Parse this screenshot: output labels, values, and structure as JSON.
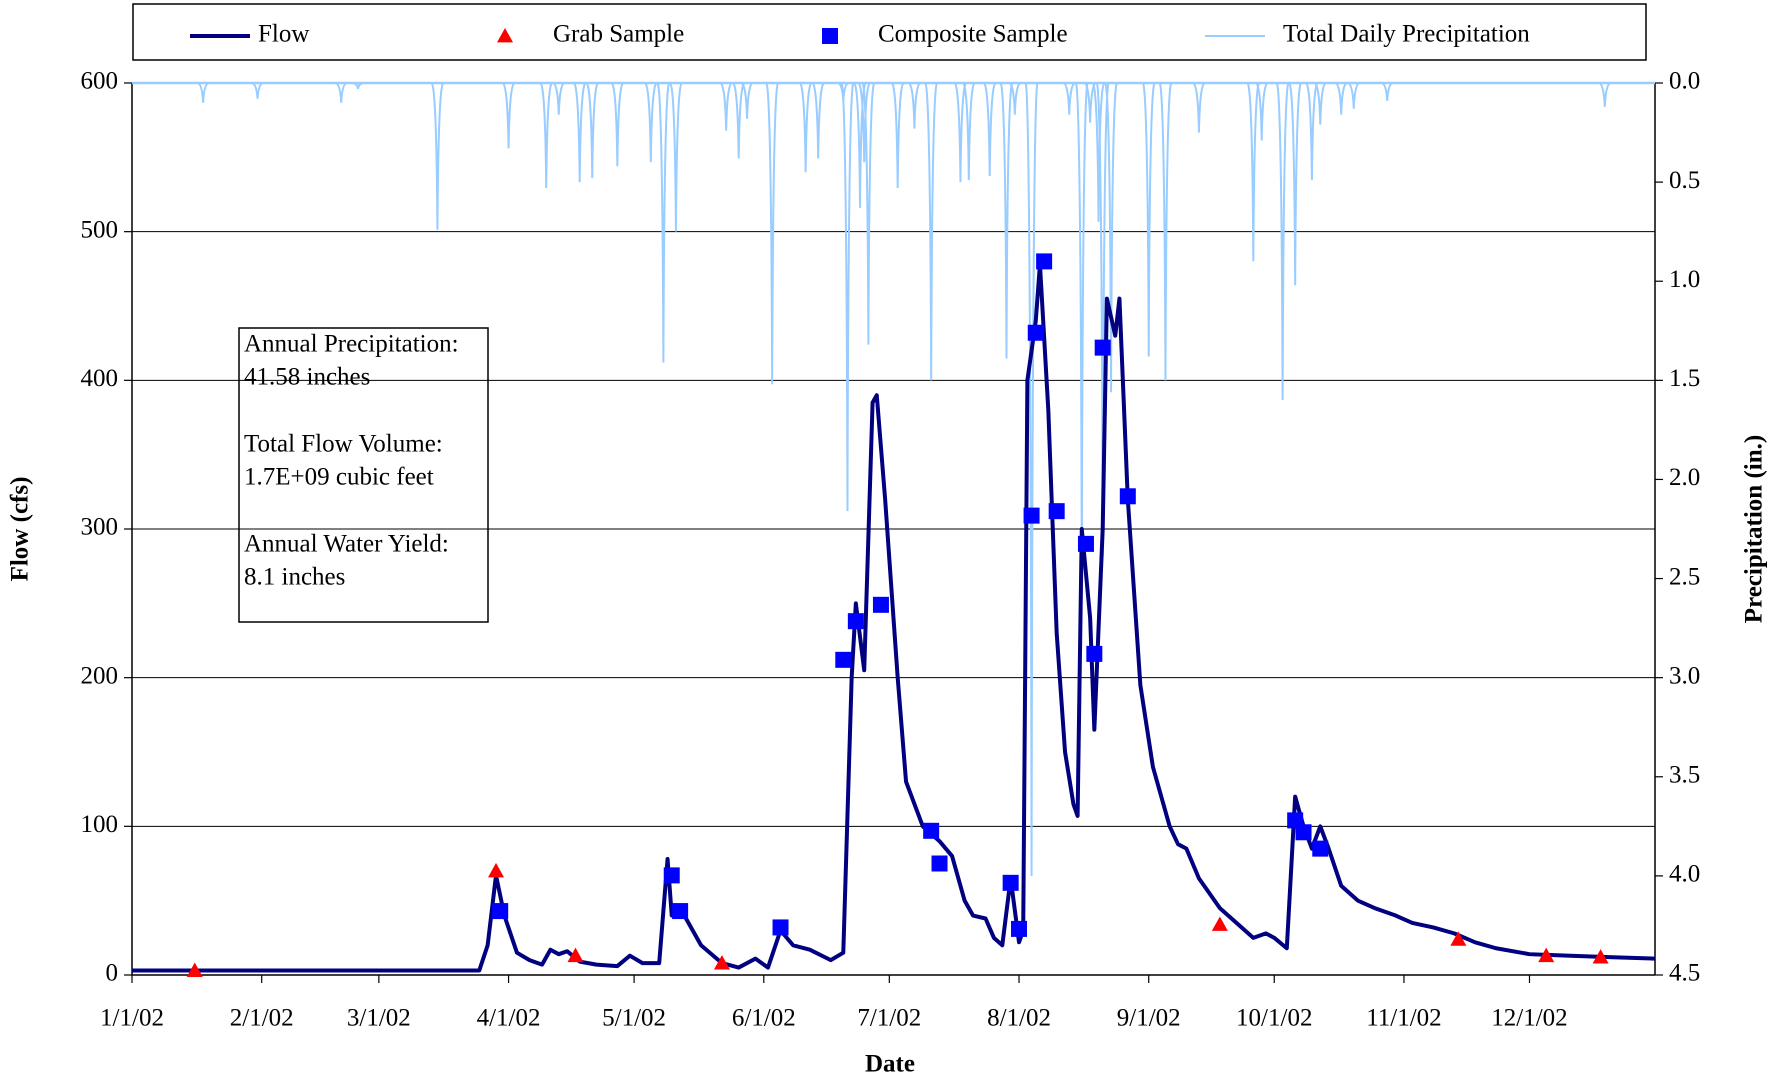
{
  "chart_data": {
    "type": "line",
    "xlabel": "Date",
    "ylabel": "Flow (cfs)",
    "y2label": "Precipitation (in.)",
    "xlim": [
      "1/1/02",
      "12/31/02"
    ],
    "xticks": [
      "1/1/02",
      "2/1/02",
      "3/1/02",
      "4/1/02",
      "5/1/02",
      "6/1/02",
      "7/1/02",
      "8/1/02",
      "9/1/02",
      "10/1/02",
      "11/1/02",
      "12/1/02"
    ],
    "ylim": [
      0,
      600
    ],
    "yticks": [
      0,
      100,
      200,
      300,
      400,
      500,
      600
    ],
    "y2lim": [
      4.5,
      0
    ],
    "y2ticks": [
      {
        "value": 0,
        "label": "0.0"
      },
      0.5,
      {
        "value": 1,
        "label": "1.0"
      },
      1.5,
      {
        "value": 2,
        "label": "2.0"
      },
      2.5,
      {
        "value": 3,
        "label": "3.0"
      },
      3.5,
      {
        "value": 4,
        "label": "4.0"
      },
      4.5
    ],
    "grid": true,
    "annotation": [
      "Annual Precipitation:",
      "41.58 inches",
      "Total Flow Volume:",
      "1.7E+09 cubic feet",
      "Annual Water Yield:",
      "8.1 inches"
    ],
    "series": [
      {
        "name": "Flow",
        "type": "line",
        "color": "#000080",
        "x": [
          "1/1/02",
          "3/25/02",
          "3/27/02",
          "3/29/02",
          "3/31/02",
          "4/3/02",
          "4/6/02",
          "4/9/02",
          "4/11/02",
          "4/13/02",
          "4/15/02",
          "4/18/02",
          "4/22/02",
          "4/27/02",
          "4/30/02",
          "5/3/02",
          "5/7/02",
          "5/9/02",
          "5/10/02",
          "5/13/02",
          "5/17/02",
          "5/22/02",
          "5/26/02",
          "5/30/02",
          "6/2/02",
          "6/5/02",
          "6/8/02",
          "6/12/02",
          "6/17/02",
          "6/20/02",
          "6/22/02",
          "6/23/02",
          "6/25/02",
          "6/27/02",
          "6/28/02",
          "6/30/02",
          "7/3/02",
          "7/5/02",
          "7/9/02",
          "7/13/02",
          "7/16/02",
          "7/19/02",
          "7/21/02",
          "7/24/02",
          "7/26/02",
          "7/28/02",
          "7/30/02",
          "8/1/02",
          "8/2/02",
          "8/3/02",
          "8/5/02",
          "8/6/02",
          "8/8/02",
          "8/10/02",
          "8/12/02",
          "8/14/02",
          "8/15/02",
          "8/16/02",
          "8/18/02",
          "8/19/02",
          "8/21/02",
          "8/22/02",
          "8/24/02",
          "8/25/02",
          "8/27/02",
          "8/30/02",
          "9/2/02",
          "9/6/02",
          "9/8/02",
          "9/10/02",
          "9/13/02",
          "9/18/02",
          "9/22/02",
          "9/26/02",
          "9/29/02",
          "10/1/02",
          "10/4/02",
          "10/6/02",
          "10/8/02",
          "10/10/02",
          "10/12/02",
          "10/14/02",
          "10/17/02",
          "10/21/02",
          "10/25/02",
          "10/30/02",
          "11/3/02",
          "11/8/02",
          "11/13/02",
          "11/18/02",
          "11/23/02",
          "12/1/02",
          "12/10/02",
          "12/20/02",
          "12/31/02"
        ],
        "values": [
          3,
          3,
          20,
          67,
          40,
          15,
          10,
          7,
          17,
          14,
          16,
          9,
          7,
          6,
          13,
          8,
          8,
          78,
          40,
          40,
          20,
          8,
          5,
          11,
          5,
          30,
          20,
          17,
          10,
          15,
          200,
          250,
          205,
          385,
          390,
          320,
          200,
          130,
          100,
          90,
          80,
          50,
          40,
          38,
          25,
          20,
          65,
          22,
          30,
          400,
          440,
          478,
          380,
          230,
          150,
          115,
          107,
          300,
          240,
          165,
          300,
          455,
          430,
          455,
          320,
          195,
          140,
          100,
          88,
          85,
          65,
          45,
          35,
          25,
          28,
          25,
          18,
          120,
          100,
          85,
          100,
          85,
          60,
          50,
          45,
          40,
          35,
          32,
          28,
          22,
          18,
          14,
          13,
          12,
          11
        ]
      },
      {
        "name": "Grab Sample",
        "type": "triangle",
        "color": "#ff0000",
        "x": [
          "1/16/02",
          "3/29/02",
          "4/17/02",
          "5/22/02",
          "9/18/02",
          "11/14/02",
          "12/5/02",
          "12/18/02"
        ],
        "values": [
          3,
          70,
          13,
          8,
          34,
          24,
          13,
          12
        ]
      },
      {
        "name": "Composite Sample",
        "type": "square",
        "color": "#0000ff",
        "x": [
          "3/30/02",
          "5/10/02",
          "5/12/02",
          "6/5/02",
          "6/20/02",
          "6/23/02",
          "6/29/02",
          "7/11/02",
          "7/13/02",
          "7/30/02",
          "8/1/02",
          "8/4/02",
          "8/5/02",
          "8/7/02",
          "8/10/02",
          "8/17/02",
          "8/19/02",
          "8/21/02",
          "8/27/02",
          "10/6/02",
          "10/8/02",
          "10/12/02"
        ],
        "values": [
          43,
          67,
          43,
          32,
          212,
          238,
          249,
          97,
          75,
          62,
          31,
          309,
          432,
          480,
          312,
          290,
          216,
          422,
          322,
          104,
          96,
          85
        ]
      },
      {
        "name": "Total Daily Precipitation",
        "type": "spike",
        "axis": "y2",
        "color": "#99ccff",
        "x": [
          "1/18/02",
          "1/31/02",
          "2/20/02",
          "2/24/02",
          "3/15/02",
          "4/1/02",
          "4/10/02",
          "4/13/02",
          "4/18/02",
          "4/21/02",
          "4/27/02",
          "5/5/02",
          "5/8/02",
          "5/11/02",
          "5/23/02",
          "5/26/02",
          "5/28/02",
          "6/3/02",
          "6/11/02",
          "6/14/02",
          "6/20/02",
          "6/21/02",
          "6/24/02",
          "6/25/02",
          "6/26/02",
          "7/3/02",
          "7/7/02",
          "7/11/02",
          "7/18/02",
          "7/20/02",
          "7/25/02",
          "7/29/02",
          "7/31/02",
          "8/4/02",
          "8/13/02",
          "8/16/02",
          "8/18/02",
          "8/20/02",
          "8/21/02",
          "8/23/02",
          "9/1/02",
          "9/5/02",
          "9/13/02",
          "9/26/02",
          "9/28/02",
          "10/3/02",
          "10/6/02",
          "10/10/02",
          "10/12/02",
          "10/17/02",
          "10/20/02",
          "10/28/02",
          "12/19/02"
        ],
        "values": [
          0.1,
          0.08,
          0.1,
          0.03,
          0.74,
          0.33,
          0.53,
          0.16,
          0.5,
          0.48,
          0.42,
          0.4,
          1.41,
          0.75,
          0.24,
          0.38,
          0.18,
          1.52,
          0.45,
          0.38,
          0.09,
          2.16,
          0.63,
          0.4,
          1.32,
          0.53,
          0.23,
          1.5,
          0.5,
          0.49,
          0.47,
          1.39,
          0.16,
          4.0,
          0.16,
          2.48,
          0.2,
          0.7,
          2.39,
          1.56,
          1.38,
          1.5,
          0.25,
          0.9,
          0.29,
          1.6,
          1.02,
          0.49,
          0.21,
          0.16,
          0.13,
          0.09,
          0.12
        ]
      }
    ]
  }
}
